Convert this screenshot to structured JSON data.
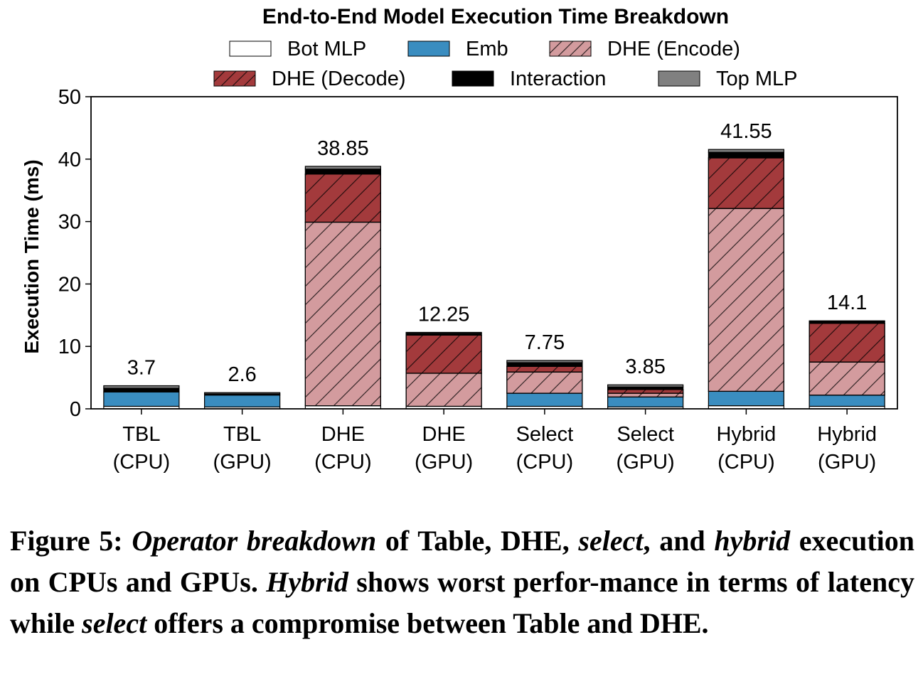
{
  "chart_data": {
    "type": "bar",
    "stacked": true,
    "title": "End-to-End Model Execution Time Breakdown",
    "xlabel": "",
    "ylabel": "Execution Time (ms)",
    "ylim": [
      0,
      50
    ],
    "yticks": [
      "0",
      "10",
      "20",
      "30",
      "40",
      "50"
    ],
    "grid": false,
    "legend_position": "top",
    "categories": [
      [
        "TBL",
        "(CPU)"
      ],
      [
        "TBL",
        "(GPU)"
      ],
      [
        "DHE",
        "(CPU)"
      ],
      [
        "DHE",
        "(GPU)"
      ],
      [
        "Select",
        "(CPU)"
      ],
      [
        "Select",
        "(GPU)"
      ],
      [
        "Hybrid",
        "(CPU)"
      ],
      [
        "Hybrid",
        "(GPU)"
      ]
    ],
    "totals_labels": [
      "3.7",
      "2.6",
      "38.85",
      "12.25",
      "7.75",
      "3.85",
      "41.55",
      "14.1"
    ],
    "totals": [
      3.7,
      2.6,
      38.85,
      12.25,
      7.75,
      3.85,
      41.55,
      14.1
    ],
    "series": [
      {
        "name": "Bot MLP",
        "color": "#ffffff",
        "hatch": false,
        "values": [
          0.4,
          0.3,
          0.5,
          0.4,
          0.4,
          0.3,
          0.5,
          0.4
        ]
      },
      {
        "name": "Emb",
        "color": "#3a8dc0",
        "hatch": false,
        "values": [
          2.3,
          1.9,
          0.0,
          0.0,
          2.1,
          1.6,
          2.3,
          1.8
        ]
      },
      {
        "name": "DHE (Encode)",
        "color": "#d39b9e",
        "hatch": true,
        "values": [
          0.0,
          0.0,
          29.4,
          5.3,
          3.4,
          0.6,
          29.3,
          5.3
        ]
      },
      {
        "name": "DHE (Decode)",
        "color": "#a33a3c",
        "hatch": true,
        "values": [
          0.0,
          0.0,
          7.7,
          6.1,
          0.9,
          0.6,
          8.1,
          6.2
        ]
      },
      {
        "name": "Interaction",
        "color": "#000000",
        "hatch": false,
        "values": [
          0.6,
          0.2,
          0.8,
          0.3,
          0.6,
          0.4,
          0.9,
          0.3
        ]
      },
      {
        "name": "Top MLP",
        "color": "#808080",
        "hatch": false,
        "values": [
          0.4,
          0.2,
          0.45,
          0.15,
          0.35,
          0.35,
          0.45,
          0.1
        ]
      }
    ]
  },
  "caption": {
    "label": "Figure 5:",
    "italic_1": "Operator breakdown",
    "text_1": " of Table, DHE, ",
    "italic_2": "select",
    "text_2": ", and ",
    "italic_3": "hybrid",
    "text_3": " execution on CPUs and GPUs. ",
    "italic_4": "Hybrid",
    "text_4": " shows worst perfor-mance in terms of latency while ",
    "italic_5": "select",
    "text_5": " offers a compromise between Table and DHE."
  }
}
